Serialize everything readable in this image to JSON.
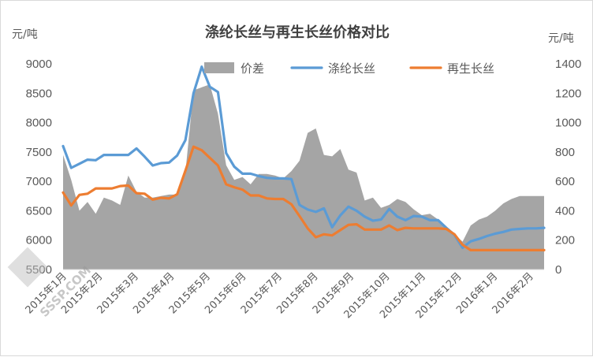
{
  "chart_data": {
    "type": "line",
    "title": "涤纶长丝与再生长丝价格对比",
    "ylabel_left": "元/吨",
    "ylabel_right": "元/吨",
    "ylim_left": [
      5500,
      9000
    ],
    "ylim_right": [
      0,
      1400
    ],
    "yticks_left": [
      "9000",
      "8500",
      "8000",
      "7500",
      "7000",
      "6500",
      "6000",
      "5500"
    ],
    "yticks_right": [
      "1400",
      "1200",
      "1000",
      "800",
      "600",
      "400",
      "200",
      "0"
    ],
    "xtick_labels": [
      "2015年1月",
      "2015年2月",
      "2015年3月",
      "2015年4月",
      "2015年5月",
      "2015年6月",
      "2015年7月",
      "2015年8月",
      "2015年9月",
      "2015年10月",
      "2015年11月",
      "2015年12月",
      "2016年1月",
      "2016年2月"
    ],
    "legend_position": "top-right",
    "grid": false,
    "watermark": "SSSP.COM",
    "series": [
      {
        "name": "价差",
        "kind": "area",
        "axis": "right",
        "color": "#a5a5a5",
        "values": [
          780,
          610,
          400,
          460,
          380,
          490,
          470,
          440,
          640,
          530,
          490,
          490,
          500,
          510,
          510,
          660,
          1220,
          1240,
          1260,
          1060,
          710,
          610,
          630,
          580,
          650,
          650,
          640,
          620,
          670,
          740,
          930,
          960,
          780,
          770,
          820,
          680,
          660,
          470,
          490,
          420,
          440,
          480,
          460,
          410,
          370,
          380,
          340,
          280,
          240,
          190,
          300,
          340,
          360,
          400,
          450,
          480,
          500,
          500,
          500,
          500
        ]
      },
      {
        "name": "涤纶长丝",
        "kind": "line",
        "axis": "left",
        "color": "#5b9bd5",
        "values": [
          7600,
          7230,
          7300,
          7370,
          7360,
          7450,
          7450,
          7450,
          7450,
          7560,
          7420,
          7270,
          7310,
          7320,
          7440,
          7700,
          8500,
          8950,
          8610,
          8520,
          7480,
          7250,
          7130,
          7130,
          7090,
          7060,
          7050,
          7050,
          7040,
          6600,
          6520,
          6480,
          6540,
          6220,
          6420,
          6570,
          6500,
          6400,
          6330,
          6350,
          6530,
          6400,
          6340,
          6410,
          6400,
          6340,
          6340,
          6210,
          6090,
          5870,
          5980,
          6020,
          6070,
          6110,
          6140,
          6180,
          6190,
          6200,
          6200,
          6210
        ]
      },
      {
        "name": "再生长丝",
        "kind": "line",
        "axis": "left",
        "color": "#ed7d31",
        "values": [
          6810,
          6590,
          6770,
          6790,
          6880,
          6880,
          6880,
          6920,
          6930,
          6800,
          6790,
          6690,
          6720,
          6710,
          6780,
          7180,
          7590,
          7530,
          7400,
          7270,
          6950,
          6900,
          6860,
          6760,
          6760,
          6710,
          6700,
          6700,
          6610,
          6410,
          6200,
          6050,
          6100,
          6080,
          6170,
          6260,
          6270,
          6180,
          6180,
          6180,
          6250,
          6170,
          6210,
          6200,
          6200,
          6200,
          6200,
          6190,
          6100,
          5920,
          5830,
          5830,
          5830,
          5830,
          5830,
          5830,
          5830,
          5830,
          5830,
          5830
        ]
      }
    ]
  }
}
